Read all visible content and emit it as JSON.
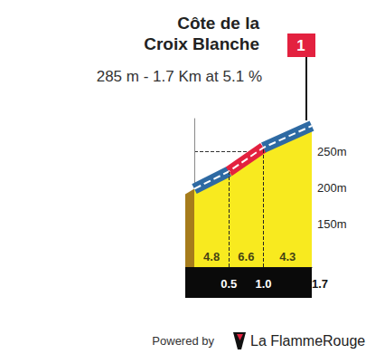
{
  "chart_data": {
    "type": "area",
    "title": "Côte de la\nCroix Blanche",
    "subtitle": "285 m - 1.7 Km at 5.1 %",
    "x": [
      0,
      0.5,
      1,
      1.7
    ],
    "values": [
      198,
      222,
      255,
      285
    ],
    "color": "#f8ea1f",
    "segments": {
      "gradients": [
        4.8,
        6.6,
        4.3
      ],
      "colors": [
        "#2e6aa3",
        "#e3213f",
        "#2e6aa3"
      ]
    },
    "xlim": [
      0,
      1.7
    ],
    "xticks": [
      0.5,
      {
        "value": 1,
        "label": "1.0"
      },
      1.7
    ],
    "ylim": [
      90,
      295
    ],
    "yticks": [
      {
        "value": 150,
        "label": "150m"
      },
      {
        "value": 200,
        "label": "200m"
      },
      {
        "value": 250,
        "label": "250m"
      }
    ],
    "grid": true,
    "data_labels": true,
    "annotations": {
      "flag": "1",
      "footer": [
        "Powered by",
        "La FlammeRouge"
      ]
    }
  }
}
